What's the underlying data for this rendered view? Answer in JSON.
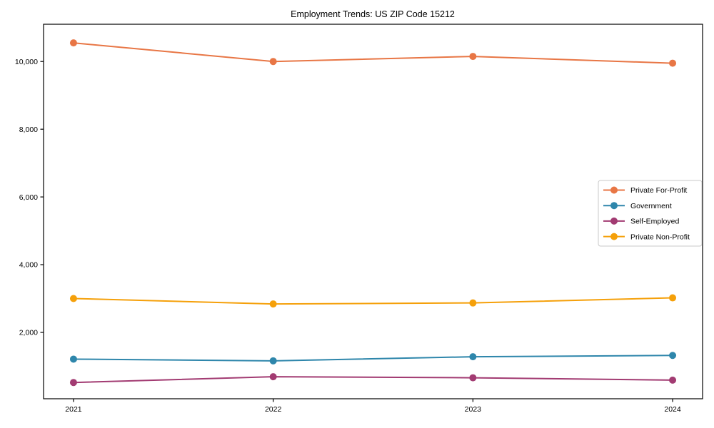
{
  "figure": {
    "background_color": "#ffffff",
    "frame_color": "#000000",
    "legend_border_color": "#c9c9c9"
  },
  "chart_data": {
    "type": "line",
    "title": "Employment Trends: US ZIP Code 15212",
    "xlabel": "",
    "ylabel": "",
    "x": [
      2021,
      2022,
      2023,
      2024
    ],
    "x_tick_labels": [
      "2021",
      "2022",
      "2023",
      "2024"
    ],
    "y_tick_values": [
      2000,
      4000,
      6000,
      8000,
      10000
    ],
    "y_tick_labels": [
      "2,000",
      "4,000",
      "6,000",
      "8,000",
      "10,000"
    ],
    "xlim": [
      2020.85,
      2024.15
    ],
    "ylim": [
      40,
      11100
    ],
    "grid": false,
    "marker": "circle",
    "legend_position": "center right",
    "series": [
      {
        "name": "Private For-Profit",
        "color": "#E87645",
        "values": [
          10550,
          10000,
          10150,
          9950
        ]
      },
      {
        "name": "Government",
        "color": "#2E86AB",
        "values": [
          1210,
          1160,
          1280,
          1320
        ]
      },
      {
        "name": "Self-Employed",
        "color": "#A23B72",
        "values": [
          520,
          690,
          660,
          590
        ]
      },
      {
        "name": "Private Non-Profit",
        "color": "#F5A00A",
        "values": [
          3000,
          2840,
          2870,
          3020
        ]
      }
    ]
  }
}
